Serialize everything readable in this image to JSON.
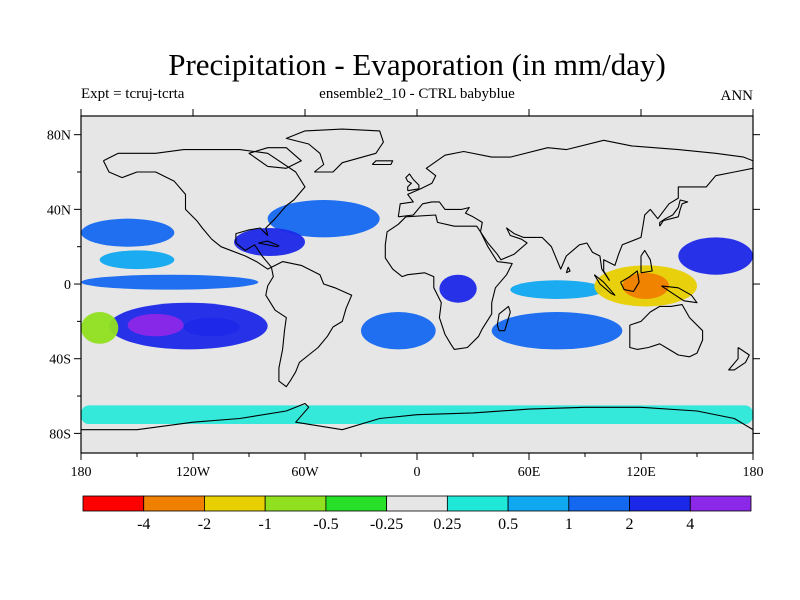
{
  "title": "Precipitation - Evaporation (in mm/day)",
  "subtitle_left": "Expt = tcruj-tcrta",
  "subtitle_center": "ensemble2_10 - CTRL babyblue",
  "subtitle_right": "ANN",
  "map": {
    "projection": "cylindrical-equidistant",
    "lon_range": [
      -180,
      180
    ],
    "lat_range": [
      -90,
      90
    ],
    "land_color": "#e8e8e8",
    "coastline_color": "#000000"
  },
  "axes": {
    "y_ticks": [
      {
        "lat": 80,
        "label": "80N"
      },
      {
        "lat": 40,
        "label": "40N"
      },
      {
        "lat": 0,
        "label": "0"
      },
      {
        "lat": -40,
        "label": "40S"
      },
      {
        "lat": -80,
        "label": "80S"
      }
    ],
    "x_ticks": [
      {
        "lon": -180,
        "label": "180"
      },
      {
        "lon": -120,
        "label": "120W"
      },
      {
        "lon": -60,
        "label": "60W"
      },
      {
        "lon": 0,
        "label": "0"
      },
      {
        "lon": 60,
        "label": "60E"
      },
      {
        "lon": 120,
        "label": "120E"
      },
      {
        "lon": 180,
        "label": "180"
      }
    ]
  },
  "colorbar": {
    "colors": [
      "#ff0000",
      "#f08000",
      "#e8d000",
      "#90e020",
      "#28e028",
      "#e6e6e6",
      "#20e8d8",
      "#10a8f0",
      "#1468f0",
      "#1c28e8",
      "#8c28e8"
    ],
    "labels": [
      "-4",
      "-2",
      "-1",
      "-0.5",
      "-0.25",
      "0.25",
      "0.5",
      "1",
      "2",
      "4"
    ]
  },
  "chart_data": {
    "type": "heatmap",
    "title": "Precipitation - Evaporation (in mm/day)",
    "units": "mm/day",
    "levels": [
      -4,
      -2,
      -1,
      -0.5,
      -0.25,
      0.25,
      0.5,
      1,
      2,
      4
    ],
    "features": [
      {
        "region": "South Pacific subtropics",
        "lon": [
          -165,
          -80
        ],
        "lat": [
          -35,
          -10
        ],
        "bin": 9
      },
      {
        "region": "Central South Pacific core",
        "lon": [
          -155,
          -125
        ],
        "lat": [
          -28,
          -16
        ],
        "bin": 10
      },
      {
        "region": "South Pacific core east",
        "lon": [
          -125,
          -95
        ],
        "lat": [
          -28,
          -18
        ],
        "bin": 9
      },
      {
        "region": "Western Pacific SPCZ edge",
        "lon": [
          -180,
          -160
        ],
        "lat": [
          -32,
          -15
        ],
        "bin": 3
      },
      {
        "region": "Equatorial Pacific",
        "lon": [
          -180,
          -85
        ],
        "lat": [
          -3,
          5
        ],
        "bin": 8
      },
      {
        "region": "North Pacific subtropics",
        "lon": [
          -180,
          -130
        ],
        "lat": [
          20,
          35
        ],
        "bin": 8
      },
      {
        "region": "North Pacific belt",
        "lon": [
          -170,
          -130
        ],
        "lat": [
          8,
          18
        ],
        "bin": 7
      },
      {
        "region": "Subtropical North Atlantic",
        "lon": [
          -80,
          -20
        ],
        "lat": [
          25,
          45
        ],
        "bin": 8
      },
      {
        "region": "Gulf of Mexico / Caribbean",
        "lon": [
          -98,
          -60
        ],
        "lat": [
          15,
          30
        ],
        "bin": 9
      },
      {
        "region": "Tropical Atlantic ITCZ",
        "lon": [
          -50,
          -15
        ],
        "lat": [
          2,
          12
        ],
        "bin": 5
      },
      {
        "region": "North Atlantic subpolar",
        "lon": [
          -55,
          -5
        ],
        "lat": [
          48,
          62
        ],
        "bin": 5
      },
      {
        "region": "Greenland",
        "lon": [
          -55,
          -20
        ],
        "lat": [
          62,
          82
        ],
        "bin": 5
      },
      {
        "region": "Arctic",
        "lon": [
          -150,
          60
        ],
        "lat": [
          72,
          88
        ],
        "bin": 5
      },
      {
        "region": "Congo Basin",
        "lon": [
          12,
          32
        ],
        "lat": [
          -10,
          5
        ],
        "bin": 9
      },
      {
        "region": "Indian Ocean south",
        "lon": [
          40,
          110
        ],
        "lat": [
          -35,
          -15
        ],
        "bin": 8
      },
      {
        "region": "Indian Ocean ITCZ",
        "lon": [
          50,
          100
        ],
        "lat": [
          -8,
          2
        ],
        "bin": 7
      },
      {
        "region": "South Atlantic subtropics",
        "lon": [
          -30,
          10
        ],
        "lat": [
          -35,
          -15
        ],
        "bin": 8
      },
      {
        "region": "Indonesia / Maritime Continent",
        "lon": [
          95,
          150
        ],
        "lat": [
          -12,
          10
        ],
        "bin": 2
      },
      {
        "region": "Indonesia core",
        "lon": [
          110,
          135
        ],
        "lat": [
          -8,
          6
        ],
        "bin": 1
      },
      {
        "region": "West Pacific subtropics",
        "lon": [
          140,
          180
        ],
        "lat": [
          5,
          25
        ],
        "bin": 9
      },
      {
        "region": "Southern Ocean belt",
        "lon": [
          -180,
          180
        ],
        "lat": [
          -62,
          -45
        ],
        "bin": 5
      },
      {
        "region": "Antarctic coast",
        "lon": [
          -180,
          180
        ],
        "lat": [
          -75,
          -65
        ],
        "bin": 6
      }
    ]
  }
}
